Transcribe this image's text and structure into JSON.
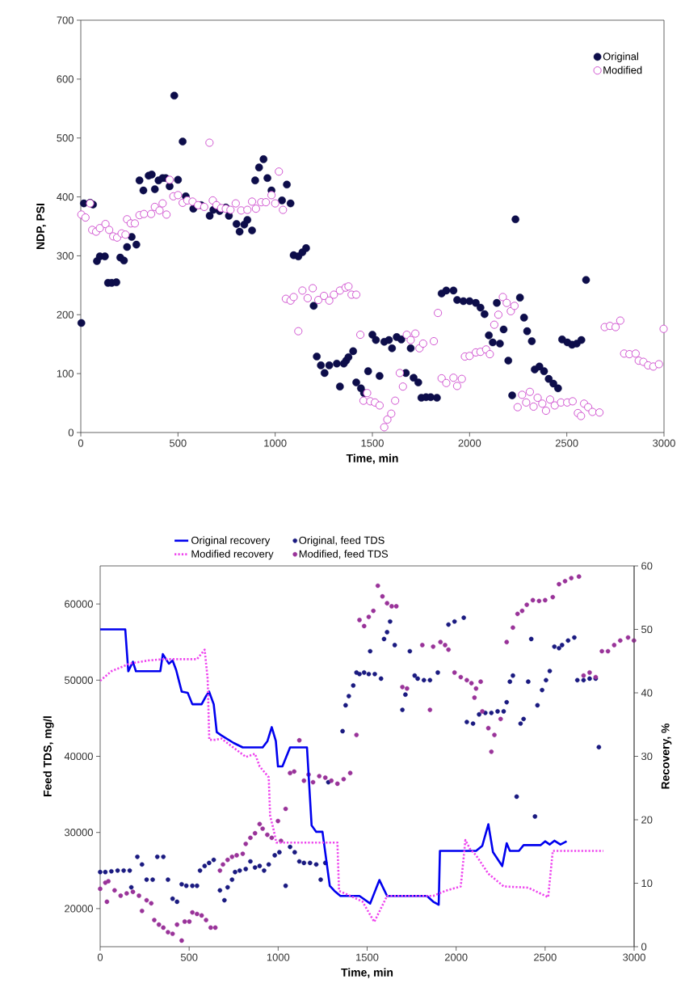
{
  "chart_data": [
    {
      "type": "scatter",
      "xlabel": "Time, min",
      "ylabel": "NDP, PSI",
      "xlim": [
        0,
        3000
      ],
      "ylim": [
        0,
        700
      ],
      "xticks": [
        0,
        500,
        1000,
        1500,
        2000,
        2500,
        3000
      ],
      "yticks": [
        0,
        100,
        200,
        300,
        400,
        500,
        600,
        700
      ],
      "legend": "top right",
      "series": [
        {
          "name": "Original",
          "marker": "circle",
          "color": "#0d0d4a",
          "x": [
            3,
            16,
            48,
            63,
            83,
            98,
            124,
            140,
            159,
            183,
            203,
            222,
            238,
            262,
            286,
            302,
            322,
            349,
            365,
            381,
            400,
            421,
            437,
            457,
            481,
            500,
            524,
            540,
            579,
            619,
            663,
            682,
            714,
            746,
            762,
            801,
            817,
            841,
            857,
            881,
            897,
            917,
            940,
            960,
            981,
            1035,
            1060,
            1079,
            1095,
            1119,
            1140,
            1159,
            1198,
            1214,
            1235,
            1254,
            1278,
            1317,
            1333,
            1365,
            1353,
            1377,
            1401,
            1417,
            1441,
            1457,
            1478,
            1500,
            1518,
            1537,
            1561,
            1585,
            1601,
            1625,
            1649,
            1672,
            1697,
            1712,
            1736,
            1752,
            1776,
            1800,
            1832,
            1856,
            1880,
            1917,
            1936,
            1968,
            2000,
            2032,
            2056,
            2077,
            2099,
            2119,
            2140,
            2156,
            2175,
            2199,
            2219,
            2236,
            2259,
            2280,
            2296,
            2320,
            2335,
            2359,
            2383,
            2407,
            2431,
            2455,
            2476,
            2503,
            2527,
            2551,
            2575,
            2599
          ],
          "values": [
            186,
            389,
            390,
            387,
            291,
            299,
            299,
            254,
            254,
            255,
            297,
            292,
            315,
            332,
            319,
            428,
            411,
            436,
            438,
            413,
            428,
            432,
            432,
            418,
            572,
            429,
            494,
            401,
            380,
            386,
            368,
            378,
            376,
            382,
            368,
            354,
            341,
            353,
            361,
            343,
            428,
            450,
            464,
            432,
            411,
            394,
            421,
            389,
            301,
            299,
            306,
            313,
            215,
            129,
            114,
            101,
            114,
            117,
            78,
            122,
            117,
            128,
            138,
            85,
            75,
            67,
            104,
            166,
            157,
            96,
            154,
            157,
            143,
            162,
            158,
            101,
            143,
            93,
            85,
            59,
            60,
            60,
            59,
            236,
            241,
            241,
            225,
            223,
            223,
            220,
            212,
            201,
            165,
            153,
            220,
            151,
            175,
            122,
            63,
            362,
            229,
            195,
            172,
            155,
            107,
            112,
            104,
            91,
            83,
            75,
            158,
            153,
            149,
            151,
            157,
            259
          ]
        },
        {
          "name": "Modified",
          "marker": "circle",
          "color": "#cc44cc",
          "x": [
            3,
            24,
            48,
            59,
            79,
            98,
            127,
            146,
            167,
            187,
            210,
            230,
            238,
            257,
            278,
            302,
            325,
            362,
            381,
            405,
            421,
            441,
            457,
            476,
            500,
            524,
            548,
            575,
            603,
            635,
            662,
            679,
            698,
            722,
            746,
            770,
            797,
            825,
            857,
            881,
            901,
            928,
            952,
            981,
            1000,
            1019,
            1040,
            1055,
            1079,
            1095,
            1119,
            1140,
            1167,
            1193,
            1222,
            1251,
            1278,
            1302,
            1333,
            1362,
            1377,
            1393,
            1417,
            1438,
            1454,
            1473,
            1489,
            1513,
            1537,
            1561,
            1577,
            1597,
            1617,
            1641,
            1657,
            1677,
            1697,
            1721,
            1742,
            1761,
            1816,
            1837,
            1856,
            1880,
            1917,
            1936,
            1960,
            1976,
            2000,
            2032,
            2056,
            2085,
            2104,
            2127,
            2148,
            2171,
            2191,
            2212,
            2231,
            2247,
            2270,
            2291,
            2310,
            2329,
            2350,
            2374,
            2393,
            2414,
            2438,
            2470,
            2502,
            2530,
            2557,
            2573,
            2589,
            2610,
            2632,
            2668,
            2695,
            2722,
            2751,
            2775,
            2795,
            2822,
            2854,
            2870,
            2894,
            2918,
            2945,
            2974,
            2998
          ],
          "values": [
            370,
            365,
            389,
            344,
            341,
            347,
            354,
            344,
            333,
            331,
            338,
            336,
            362,
            355,
            355,
            369,
            371,
            371,
            383,
            377,
            389,
            370,
            429,
            401,
            403,
            390,
            394,
            392,
            386,
            383,
            492,
            394,
            386,
            381,
            380,
            378,
            389,
            377,
            378,
            392,
            380,
            391,
            391,
            403,
            389,
            443,
            378,
            227,
            224,
            230,
            172,
            241,
            228,
            245,
            225,
            232,
            224,
            234,
            241,
            246,
            248,
            234,
            234,
            166,
            54,
            67,
            53,
            51,
            46,
            9,
            22,
            32,
            54,
            101,
            78,
            166,
            157,
            168,
            143,
            151,
            155,
            203,
            92,
            84,
            93,
            79,
            91,
            129,
            130,
            136,
            137,
            141,
            133,
            183,
            200,
            230,
            220,
            206,
            215,
            43,
            64,
            51,
            69,
            44,
            59,
            49,
            37,
            56,
            46,
            51,
            51,
            53,
            33,
            28,
            49,
            43,
            35,
            34,
            179,
            181,
            179,
            190,
            134,
            133,
            134,
            122,
            120,
            114,
            112,
            116,
            176
          ]
        }
      ]
    },
    {
      "type": "scatter",
      "xlabel": "Time, min",
      "ylabel": "Feed TDS, mg/l",
      "y2label": "Recovery, %",
      "xlim": [
        0,
        3000
      ],
      "ylim": [
        15000,
        65000
      ],
      "y2lim": [
        0,
        60
      ],
      "xticks": [
        0,
        500,
        1000,
        1500,
        2000,
        2500,
        3000
      ],
      "yticks": [
        20000,
        30000,
        40000,
        50000,
        60000
      ],
      "y2ticks": [
        0,
        10,
        20,
        30,
        40,
        50,
        60
      ],
      "legend": "top",
      "series": [
        {
          "name": "Original recovery",
          "type": "line",
          "axis": "y2",
          "line_style": "solid",
          "marker": "none",
          "color": "#0000ee",
          "x": [
            0,
            141,
            158,
            184,
            201,
            338,
            352,
            386,
            407,
            427,
            458,
            492,
            518,
            570,
            595,
            612,
            638,
            655,
            681,
            750,
            801,
            913,
            940,
            964,
            987,
            999,
            1024,
            1067,
            1162,
            1188,
            1214,
            1249,
            1290,
            1316,
            1350,
            1457,
            1517,
            1569,
            1612,
            1836,
            1871,
            1902,
            1909,
            2112,
            2147,
            2181,
            2207,
            2259,
            2284,
            2302,
            2353,
            2379,
            2474,
            2500,
            2526,
            2552,
            2586,
            2621
          ],
          "values": [
            50,
            50,
            43.4,
            44.9,
            43.4,
            43.4,
            46.1,
            44.6,
            45.1,
            43.6,
            40.2,
            40,
            38.2,
            38.2,
            39.5,
            40.2,
            38.2,
            33.8,
            33.3,
            32.1,
            31.4,
            31.4,
            32.4,
            34.6,
            32.4,
            28.4,
            28.4,
            31.4,
            31.4,
            19.1,
            18.1,
            18.1,
            9.6,
            8.8,
            8,
            8,
            6.8,
            10.5,
            8,
            8,
            7.1,
            6.6,
            15.1,
            15.1,
            15.9,
            19.3,
            14.9,
            12.7,
            16.3,
            15.1,
            15.1,
            16,
            16,
            16.6,
            16.1,
            16.7,
            16.1,
            16.6
          ]
        },
        {
          "name": "Modified recovery",
          "type": "line",
          "axis": "y2",
          "line_style": "dotted",
          "marker": "none",
          "color": "#ee44ee",
          "x": [
            0,
            63,
            166,
            269,
            355,
            544,
            587,
            604,
            613,
            647,
            681,
            819,
            870,
            896,
            947,
            955,
            973,
            990,
            1333,
            1342,
            1422,
            1474,
            1540,
            1612,
            1871,
            1940,
            2026,
            2052,
            2078,
            2112,
            2181,
            2267,
            2405,
            2517,
            2543,
            2560,
            2827
          ],
          "values": [
            41.9,
            43.4,
            44.6,
            45.1,
            45.3,
            45.3,
            46.8,
            42.2,
            32.6,
            32.6,
            32.8,
            29.9,
            30.4,
            28.4,
            26.7,
            20.6,
            18.6,
            16.4,
            16.4,
            8.8,
            7.8,
            7.1,
            3.9,
            8,
            8,
            8.8,
            9.5,
            16.8,
            15.4,
            14.4,
            11.5,
            9.5,
            9.3,
            7.8,
            15.1,
            15.1,
            15.1
          ]
        },
        {
          "name": "Original, feed TDS",
          "type": "scatter",
          "marker": "circle",
          "color": "#1a1a80",
          "x": [
            0,
            29,
            63,
            98,
            132,
            166,
            175,
            209,
            235,
            261,
            295,
            321,
            355,
            381,
            407,
            432,
            458,
            484,
            518,
            544,
            561,
            587,
            612,
            638,
            673,
            698,
            716,
            741,
            758,
            784,
            818,
            844,
            870,
            896,
            921,
            947,
            981,
            1007,
            1042,
            1067,
            1093,
            1119,
            1145,
            1179,
            1214,
            1239,
            1265,
            1282,
            1362,
            1379,
            1397,
            1422,
            1440,
            1457,
            1483,
            1509,
            1543,
            1578,
            1517,
            1595,
            1612,
            1629,
            1655,
            1698,
            1715,
            1740,
            1767,
            1784,
            1819,
            1853,
            1897,
            1957,
            1991,
            2043,
            2060,
            2095,
            2129,
            2164,
            2198,
            2233,
            2267,
            2284,
            2302,
            2319,
            2340,
            2362,
            2379,
            2405,
            2422,
            2443,
            2457,
            2483,
            2505,
            2526,
            2552,
            2578,
            2595,
            2629,
            2664,
            2681,
            2716,
            2750,
            2784,
            2802
          ],
          "values": [
            24800,
            24800,
            24900,
            25000,
            25000,
            25000,
            22800,
            26800,
            25800,
            23800,
            23800,
            26800,
            26800,
            23800,
            21300,
            20900,
            23200,
            23000,
            23000,
            23000,
            25000,
            25600,
            26000,
            26400,
            22400,
            21100,
            22800,
            23800,
            24800,
            25000,
            25200,
            26200,
            25400,
            25600,
            25000,
            25800,
            27000,
            27400,
            23000,
            28100,
            27400,
            26200,
            26000,
            26000,
            25800,
            23800,
            26000,
            36600,
            43300,
            46700,
            47900,
            49300,
            51000,
            50800,
            51000,
            50800,
            50800,
            50200,
            53800,
            55400,
            56300,
            57700,
            54600,
            46100,
            48100,
            53800,
            50600,
            50200,
            50000,
            50000,
            51000,
            57300,
            57700,
            58200,
            44500,
            44300,
            45500,
            45700,
            45700,
            45900,
            45900,
            47100,
            49800,
            50600,
            34700,
            44300,
            44900,
            49800,
            55400,
            32100,
            46700,
            48700,
            50000,
            51200,
            54400,
            54200,
            54600,
            55200,
            55600,
            50000,
            50000,
            50200,
            50200,
            41200
          ]
        },
        {
          "name": "Modified, feed TDS",
          "type": "scatter",
          "marker": "circle",
          "color": "#993399",
          "x": [
            0,
            29,
            46,
            38,
            81,
            115,
            149,
            184,
            218,
            235,
            261,
            287,
            304,
            330,
            355,
            381,
            407,
            432,
            458,
            475,
            501,
            518,
            544,
            570,
            595,
            621,
            647,
            673,
            690,
            716,
            741,
            767,
            801,
            818,
            844,
            870,
            896,
            913,
            939,
            964,
            999,
            1016,
            1042,
            1067,
            1090,
            1119,
            1145,
            1171,
            1196,
            1231,
            1265,
            1299,
            1333,
            1368,
            1405,
            1440,
            1457,
            1483,
            1509,
            1535,
            1560,
            1586,
            1612,
            1638,
            1664,
            1698,
            1724,
            1810,
            1853,
            1871,
            1912,
            1938,
            1957,
            1991,
            2026,
            2060,
            2086,
            2103,
            2112,
            2138,
            2147,
            2181,
            2198,
            2215,
            2250,
            2284,
            2319,
            2345,
            2371,
            2397,
            2431,
            2466,
            2500,
            2543,
            2578,
            2612,
            2647,
            2690,
            2716,
            2750,
            2784,
            2819,
            2853,
            2888,
            2922,
            2966,
            2999
          ],
          "values": [
            22600,
            23400,
            23600,
            20900,
            22400,
            21700,
            22000,
            22200,
            21700,
            19700,
            21100,
            20700,
            18500,
            17900,
            17500,
            16900,
            16700,
            17900,
            15800,
            18300,
            18300,
            19500,
            19300,
            19100,
            18500,
            17500,
            17500,
            25000,
            25800,
            26400,
            26800,
            27000,
            27200,
            28500,
            29300,
            29900,
            31100,
            30500,
            29700,
            29300,
            31500,
            28900,
            33100,
            37800,
            38000,
            42100,
            36800,
            37600,
            36600,
            37400,
            37200,
            36800,
            36400,
            37000,
            37800,
            42800,
            57900,
            57100,
            58300,
            59100,
            62400,
            61000,
            60100,
            59700,
            59700,
            49100,
            48900,
            54600,
            46100,
            54400,
            55000,
            54600,
            54000,
            51000,
            50400,
            50000,
            49600,
            47700,
            48900,
            49800,
            45900,
            43700,
            40600,
            42800,
            44900,
            55000,
            56900,
            58700,
            59100,
            59900,
            60500,
            60400,
            60500,
            60900,
            62600,
            63000,
            63400,
            63600,
            50600,
            51000,
            50400,
            53800,
            53800,
            54600,
            55200,
            55600,
            55200
          ]
        }
      ]
    }
  ]
}
